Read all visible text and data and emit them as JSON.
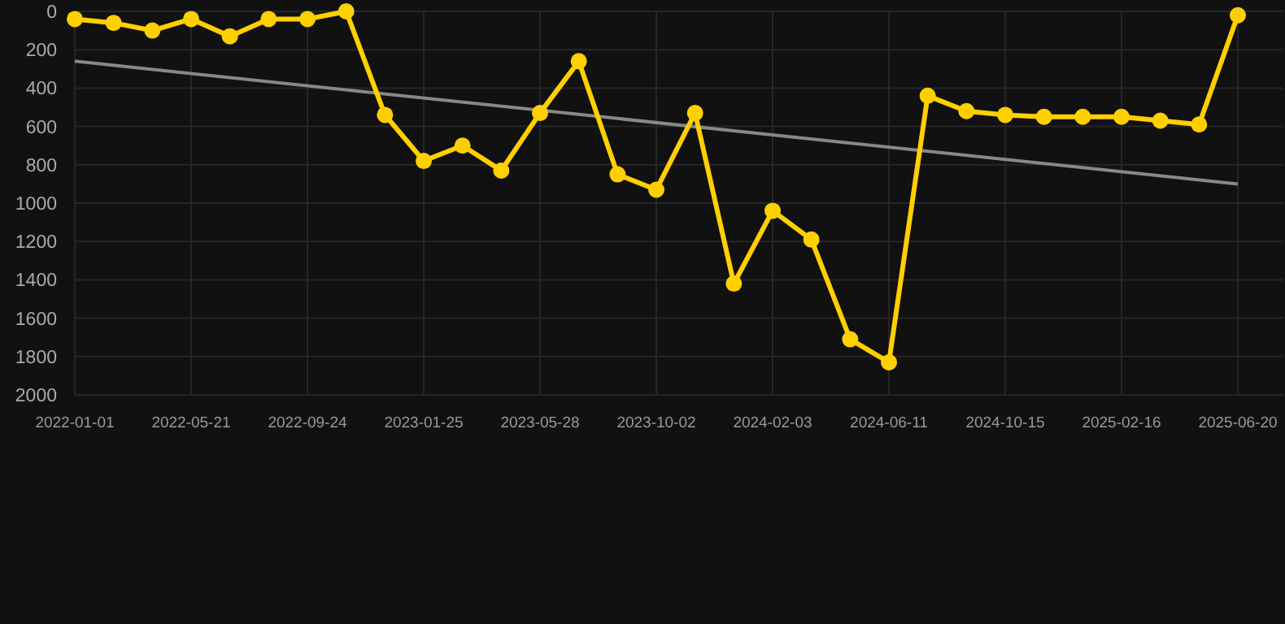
{
  "chart_data": {
    "type": "line",
    "categories": [
      "2022-01-01",
      null,
      null,
      "2022-05-21",
      null,
      null,
      "2022-09-24",
      null,
      null,
      "2023-01-25",
      null,
      null,
      "2023-05-28",
      null,
      null,
      "2023-10-02",
      null,
      null,
      "2024-02-03",
      null,
      null,
      "2024-06-11",
      null,
      null,
      "2024-10-15",
      null,
      null,
      "2025-02-16",
      null,
      null,
      "2025-06-20"
    ],
    "series": [
      {
        "color": "#ffd000",
        "marker": "circle",
        "values": [
          40,
          60,
          100,
          40,
          130,
          40,
          40,
          0,
          540,
          780,
          700,
          830,
          530,
          260,
          850,
          930,
          530,
          1420,
          1040,
          1190,
          1710,
          1830,
          440,
          520,
          540,
          550,
          550,
          550,
          570,
          590,
          20
        ]
      },
      {
        "color": "#888888",
        "marker": "none",
        "values": [
          260,
          null,
          null,
          null,
          null,
          null,
          null,
          null,
          null,
          null,
          null,
          null,
          null,
          null,
          null,
          null,
          null,
          null,
          null,
          null,
          null,
          null,
          null,
          null,
          null,
          null,
          null,
          null,
          null,
          null,
          900
        ]
      }
    ],
    "ylim": [
      2000,
      0
    ],
    "yticks": [
      0,
      200,
      400,
      600,
      800,
      1000,
      1200,
      1400,
      1600,
      1800,
      2000
    ],
    "grid": true,
    "line_style": "solid"
  }
}
